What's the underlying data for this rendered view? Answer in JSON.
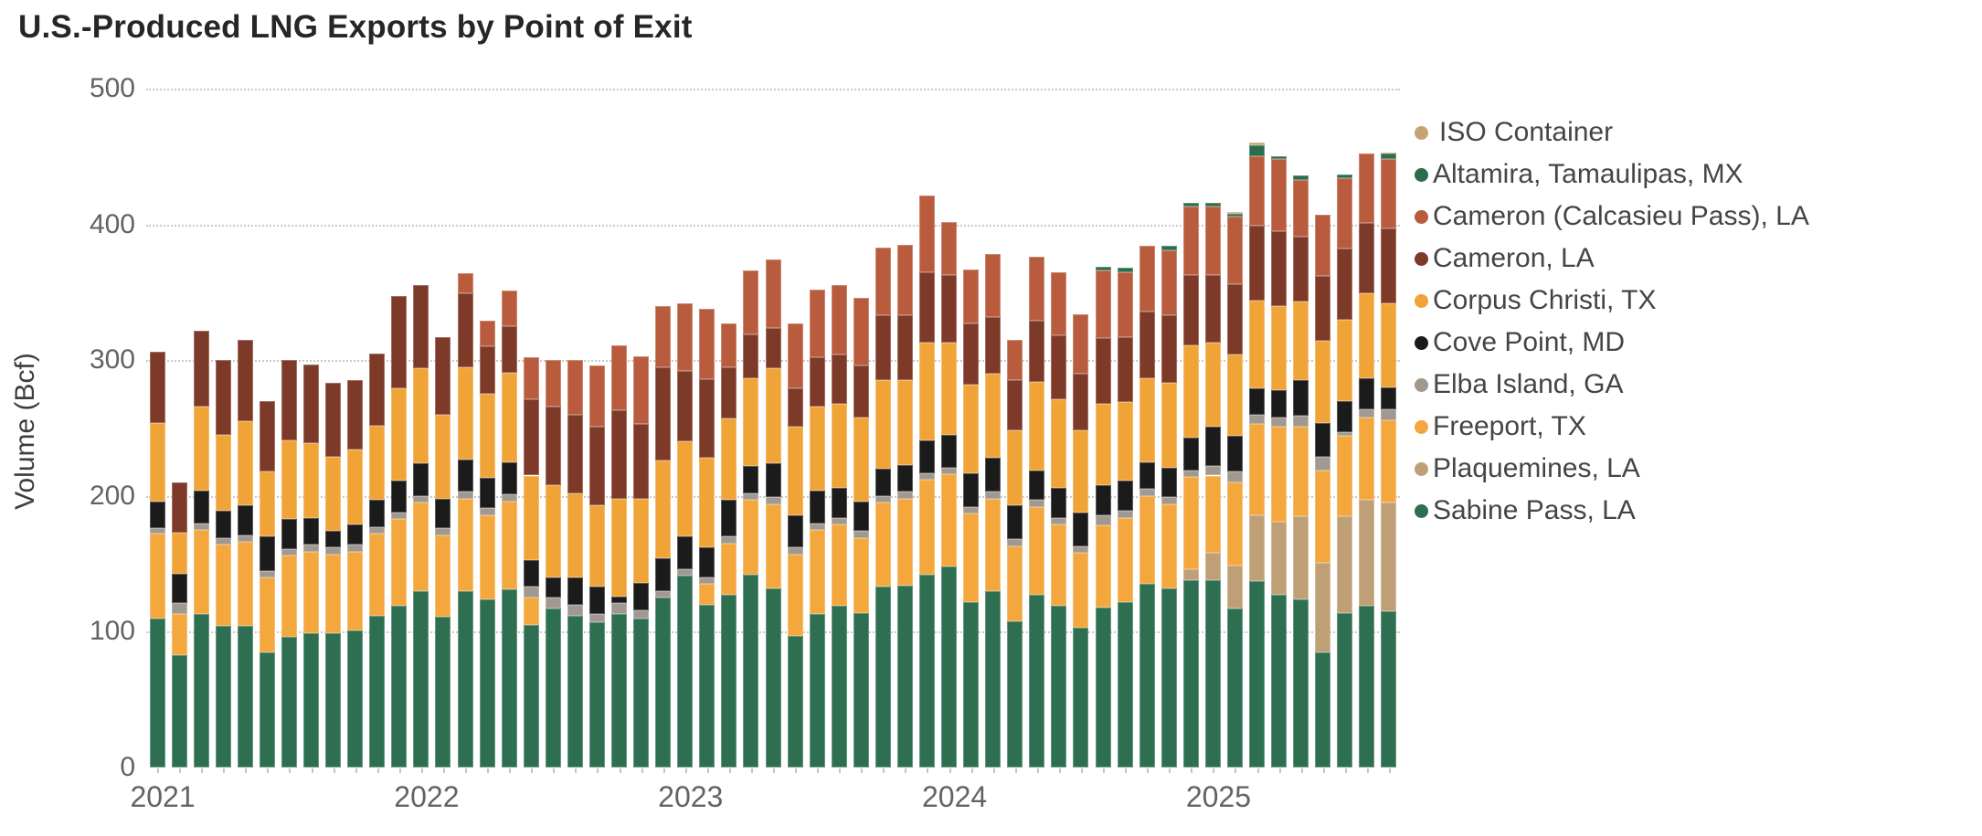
{
  "title": "U.S.-Produced LNG Exports by Point of Exit",
  "chart_data": {
    "type": "bar",
    "stacked": true,
    "title": "U.S.-Produced LNG Exports by Point of Exit",
    "xlabel": "",
    "ylabel": "Volume (Bcf)",
    "ylim": [
      0,
      500
    ],
    "yticks": [
      0,
      100,
      200,
      300,
      400,
      500
    ],
    "grid": "dotted-horizontal",
    "legend_position": "right",
    "x_tick_labels": [
      "2021",
      "2022",
      "2023",
      "2024",
      "2025"
    ],
    "x_tick_month_indices": [
      0,
      12,
      24,
      36,
      48
    ],
    "months": [
      "Jan 2021",
      "Feb 2021",
      "Mar 2021",
      "Apr 2021",
      "May 2021",
      "Jun 2021",
      "Jul 2021",
      "Aug 2021",
      "Sep 2021",
      "Oct 2021",
      "Nov 2021",
      "Dec 2021",
      "Jan 2022",
      "Feb 2022",
      "Mar 2022",
      "Apr 2022",
      "May 2022",
      "Jun 2022",
      "Jul 2022",
      "Aug 2022",
      "Sep 2022",
      "Oct 2022",
      "Nov 2022",
      "Dec 2022",
      "Jan 2023",
      "Feb 2023",
      "Mar 2023",
      "Apr 2023",
      "May 2023",
      "Jun 2023",
      "Jul 2023",
      "Aug 2023",
      "Sep 2023",
      "Oct 2023",
      "Nov 2023",
      "Dec 2023",
      "Jan 2024",
      "Feb 2024",
      "Mar 2024",
      "Apr 2024",
      "May 2024",
      "Jun 2024",
      "Jul 2024",
      "Aug 2024",
      "Sep 2024",
      "Oct 2024",
      "Nov 2024",
      "Dec 2024",
      "Jan 2025",
      "Feb 2025",
      "Mar 2025",
      "Apr 2025",
      "May 2025",
      "Jun 2025",
      "Jul 2025",
      "Aug 2025",
      "Sep 2025"
    ],
    "series_note": "values in Bcf per month, stack order bottom to top",
    "series": [
      {
        "name": "Sabine Pass, LA",
        "color": "#2E6F52",
        "values": [
          110,
          83,
          113,
          104,
          104,
          85,
          96,
          99,
          99,
          101,
          112,
          119,
          130,
          111,
          130,
          124,
          131,
          105,
          117,
          112,
          107,
          113,
          110,
          125,
          141,
          120,
          127,
          142,
          132,
          97,
          113,
          119,
          114,
          133,
          134,
          142,
          148,
          122,
          130,
          108,
          127,
          119,
          103,
          118,
          122,
          135,
          132,
          138,
          138,
          117,
          137,
          127,
          124,
          85,
          114,
          119,
          115
        ]
      },
      {
        "name": "Plaquemines, LA",
        "color": "#BFA076",
        "values": [
          0,
          0,
          0,
          0,
          0,
          0,
          0,
          0,
          0,
          0,
          0,
          0,
          0,
          0,
          0,
          0,
          0,
          0,
          0,
          0,
          0,
          0,
          0,
          0,
          0,
          0,
          0,
          0,
          0,
          0,
          0,
          0,
          0,
          0,
          0,
          0,
          0,
          0,
          0,
          0,
          0,
          0,
          0,
          0,
          0,
          0,
          0,
          8,
          20,
          32,
          49,
          54,
          61,
          66,
          71,
          78,
          80
        ]
      },
      {
        "name": "Freeport, TX",
        "color": "#F3A73C",
        "values": [
          62,
          30,
          62,
          60,
          62,
          55,
          60,
          60,
          58,
          58,
          60,
          64,
          65,
          60,
          68,
          62,
          65,
          20,
          0,
          0,
          0,
          0,
          0,
          0,
          0,
          15,
          38,
          55,
          62,
          60,
          62,
          60,
          55,
          62,
          64,
          70,
          68,
          65,
          68,
          55,
          65,
          60,
          55,
          60,
          62,
          65,
          62,
          68,
          57,
          61,
          67,
          70,
          66,
          68,
          59,
          61,
          61
        ]
      },
      {
        "name": "Elba Island, GA",
        "color": "#A1998F",
        "values": [
          4,
          8,
          5,
          5,
          5,
          5,
          5,
          5,
          5,
          5,
          5,
          5,
          5,
          5,
          5,
          5,
          5,
          8,
          8,
          8,
          6,
          8,
          6,
          5,
          5,
          5,
          5,
          5,
          5,
          5,
          5,
          5,
          5,
          5,
          5,
          5,
          5,
          5,
          5,
          5,
          5,
          5,
          5,
          8,
          5,
          5,
          5,
          5,
          7,
          8,
          7,
          7,
          8,
          10,
          3,
          6,
          8
        ]
      },
      {
        "name": "Cove Point, MD",
        "color": "#1B1B1B",
        "values": [
          20,
          22,
          24,
          20,
          22,
          25,
          22,
          20,
          12,
          15,
          20,
          23,
          24,
          22,
          24,
          22,
          24,
          20,
          15,
          20,
          20,
          5,
          20,
          24,
          24,
          22,
          27,
          20,
          25,
          24,
          24,
          22,
          22,
          20,
          20,
          24,
          24,
          25,
          25,
          25,
          22,
          22,
          25,
          22,
          22,
          20,
          22,
          24,
          29,
          26,
          19,
          20,
          26,
          25,
          23,
          23,
          16
        ]
      },
      {
        "name": "Corpus Christi, TX",
        "color": "#F0A437",
        "values": [
          58,
          30,
          62,
          56,
          62,
          48,
          58,
          55,
          55,
          55,
          55,
          68,
          70,
          62,
          68,
          62,
          66,
          62,
          68,
          62,
          60,
          72,
          62,
          72,
          70,
          66,
          60,
          65,
          70,
          65,
          62,
          62,
          62,
          65,
          62,
          72,
          68,
          65,
          62,
          55,
          65,
          65,
          60,
          60,
          58,
          62,
          62,
          68,
          62,
          60,
          65,
          62,
          58,
          60,
          60,
          62,
          62
        ]
      },
      {
        "name": "Cameron, LA",
        "color": "#7D3A28",
        "values": [
          52,
          37,
          56,
          55,
          60,
          52,
          59,
          58,
          54,
          51,
          53,
          68,
          61,
          57,
          54,
          35,
          34,
          56,
          58,
          58,
          58,
          65,
          55,
          69,
          52,
          58,
          38,
          32,
          30,
          28,
          36,
          36,
          38,
          48,
          48,
          52,
          50,
          45,
          42,
          37,
          45,
          47,
          42,
          48,
          48,
          49,
          50,
          52,
          50,
          52,
          55,
          55,
          48,
          48,
          52,
          52,
          55
        ]
      },
      {
        "name": "Cameron (Calcasieu Pass), LA",
        "color": "#B85C3D",
        "values": [
          0,
          0,
          0,
          0,
          0,
          0,
          0,
          0,
          0,
          0,
          0,
          0,
          0,
          0,
          15,
          19,
          26,
          31,
          34,
          40,
          45,
          48,
          50,
          45,
          50,
          52,
          32,
          47,
          50,
          48,
          50,
          51,
          50,
          50,
          52,
          56,
          39,
          40,
          46,
          30,
          47,
          47,
          44,
          50,
          48,
          48,
          48,
          50,
          50,
          50,
          51,
          53,
          42,
          45,
          52,
          51,
          51
        ]
      },
      {
        "name": "Altamira, Tamaulipas, MX",
        "color": "#2B6E4E",
        "values": [
          0,
          0,
          0,
          0,
          0,
          0,
          0,
          0,
          0,
          0,
          0,
          0,
          0,
          0,
          0,
          0,
          0,
          0,
          0,
          0,
          0,
          0,
          0,
          0,
          0,
          0,
          0,
          0,
          0,
          0,
          0,
          0,
          0,
          0,
          0,
          0,
          0,
          0,
          0,
          0,
          0,
          0,
          0,
          3,
          3,
          0,
          3,
          3,
          3,
          2,
          8,
          2,
          3,
          0,
          3,
          0,
          4
        ]
      },
      {
        "name": "ISO Container",
        "color": "#C7A46F",
        "values": [
          0,
          0,
          0,
          0,
          0,
          0,
          0,
          0,
          0,
          0,
          0,
          0,
          0,
          0,
          0,
          0,
          0,
          0,
          0,
          0,
          0,
          0,
          0,
          0,
          0,
          0,
          0,
          0,
          0,
          0,
          0,
          0,
          0,
          0,
          0,
          0,
          0,
          0,
          0,
          0,
          0,
          0,
          0,
          0,
          0,
          0,
          0,
          0,
          0,
          1,
          2,
          0,
          0,
          0,
          0,
          0,
          1
        ]
      }
    ],
    "legend": {
      "items": [
        {
          "label": "ISO Container",
          "color": "#C7A46F"
        },
        {
          "label": "Altamira, Tamaulipas, MX",
          "color": "#2B6E4E"
        },
        {
          "label": "Cameron (Calcasieu Pass), LA",
          "color": "#B85C3D"
        },
        {
          "label": "Cameron, LA",
          "color": "#7D3A28"
        },
        {
          "label": "Corpus Christi, TX",
          "color": "#F0A437"
        },
        {
          "label": "Cove Point, MD",
          "color": "#1B1B1B"
        },
        {
          "label": "Elba Island, GA",
          "color": "#A1998F"
        },
        {
          "label": "Freeport, TX",
          "color": "#F3A73C"
        },
        {
          "label": "Plaquemines, LA",
          "color": "#BFA076"
        },
        {
          "label": "Sabine Pass, LA",
          "color": "#2E6F52"
        }
      ]
    }
  }
}
